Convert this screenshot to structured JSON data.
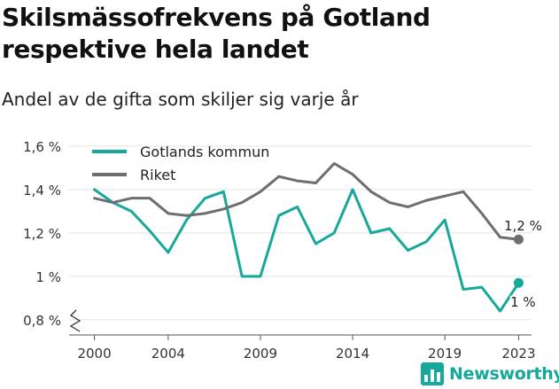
{
  "title": "Skilsmässofrekvens på Gotland respektive hela landet",
  "subtitle": "Andel av de gifta som skiljer sig varje år",
  "brand": "Newsworthy",
  "chart_data": {
    "type": "line",
    "x": [
      2000,
      2001,
      2002,
      2003,
      2004,
      2005,
      2006,
      2007,
      2008,
      2009,
      2010,
      2011,
      2012,
      2013,
      2014,
      2015,
      2016,
      2017,
      2018,
      2019,
      2020,
      2021,
      2022,
      2023
    ],
    "x_ticks": [
      2000,
      2004,
      2009,
      2014,
      2019,
      2023
    ],
    "y_ticks": [
      0.8,
      1.0,
      1.2,
      1.4,
      1.6
    ],
    "y_tick_labels": [
      "0,8 %",
      "1 %",
      "1,2 %",
      "1,4 %",
      "1,6 %"
    ],
    "ylim": [
      0.73,
      1.62
    ],
    "xlim": [
      1999.3,
      2023.7
    ],
    "y_axis_break": true,
    "grid": "horizontal",
    "legend": "top-left",
    "series": [
      {
        "name": "Gotlands kommun",
        "color": "#16a89a",
        "values": [
          1.4,
          1.34,
          1.3,
          1.21,
          1.11,
          1.26,
          1.36,
          1.39,
          1.0,
          1.0,
          1.28,
          1.32,
          1.15,
          1.2,
          1.4,
          1.2,
          1.22,
          1.12,
          1.16,
          1.26,
          0.94,
          0.95,
          0.84,
          0.97
        ],
        "end_label": "1 %"
      },
      {
        "name": "Riket",
        "color": "#6e6e6e",
        "values": [
          1.36,
          1.34,
          1.36,
          1.36,
          1.29,
          1.28,
          1.29,
          1.31,
          1.34,
          1.39,
          1.46,
          1.44,
          1.43,
          1.52,
          1.47,
          1.39,
          1.34,
          1.32,
          1.35,
          1.37,
          1.39,
          1.29,
          1.18,
          1.17
        ],
        "end_label": "1,2 %"
      }
    ]
  }
}
